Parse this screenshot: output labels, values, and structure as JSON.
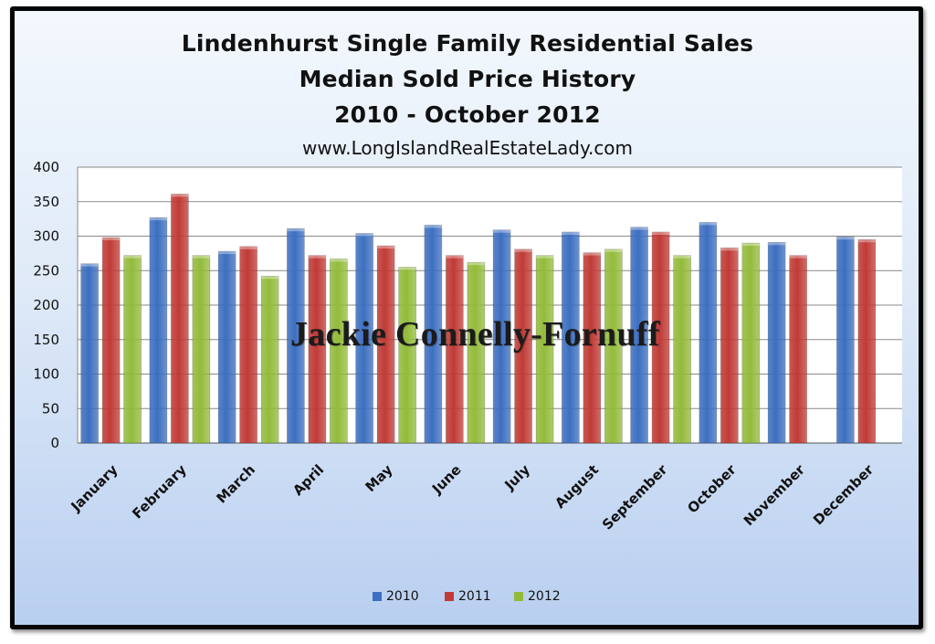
{
  "chart_data": {
    "type": "bar",
    "title_lines": [
      "Lindenhurst Single Family Residential Sales",
      "Median Sold Price History",
      "2010 - October 2012"
    ],
    "subtitle": "www.LongIslandRealEstateLady.com",
    "watermark": "Jackie Connelly-Fornuff",
    "categories": [
      "January",
      "February",
      "March",
      "April",
      "May",
      "June",
      "July",
      "August",
      "September",
      "October",
      "November",
      "December"
    ],
    "series": [
      {
        "name": "2010",
        "color": "#3d6fc0",
        "values": [
          260,
          327,
          278,
          311,
          304,
          316,
          309,
          306,
          313,
          320,
          291,
          299
        ]
      },
      {
        "name": "2011",
        "color": "#c03b36",
        "values": [
          298,
          361,
          285,
          272,
          286,
          272,
          281,
          276,
          306,
          283,
          272,
          295
        ]
      },
      {
        "name": "2012",
        "color": "#93bb3b",
        "values": [
          272,
          272,
          242,
          267,
          255,
          262,
          272,
          281,
          272,
          290,
          null,
          null
        ]
      }
    ],
    "ylim": [
      0,
      400
    ],
    "yticks": [
      0,
      50,
      100,
      150,
      200,
      250,
      300,
      350,
      400
    ],
    "grid": true,
    "legend_position": "bottom"
  }
}
